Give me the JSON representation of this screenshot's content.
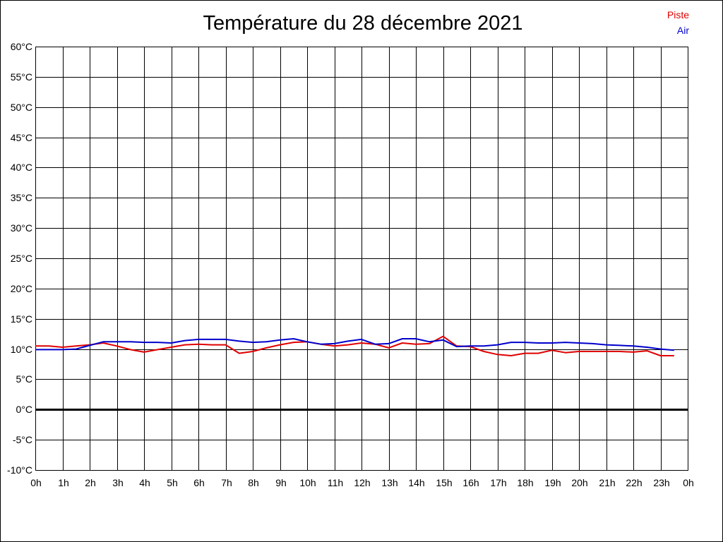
{
  "chart_data": {
    "type": "line",
    "title": "Température du 28 décembre 2021",
    "xlabel": "",
    "ylabel": "",
    "ylim": [
      -10,
      60
    ],
    "xlim": [
      0,
      24
    ],
    "yticks": [
      -10,
      -5,
      0,
      5,
      10,
      15,
      20,
      25,
      30,
      35,
      40,
      45,
      50,
      55,
      60
    ],
    "ytick_labels": [
      "-10°C",
      "-5°C",
      "0°C",
      "5°C",
      "10°C",
      "15°C",
      "20°C",
      "25°C",
      "30°C",
      "35°C",
      "40°C",
      "45°C",
      "50°C",
      "55°C",
      "60°C"
    ],
    "xticks": [
      0,
      1,
      2,
      3,
      4,
      5,
      6,
      7,
      8,
      9,
      10,
      11,
      12,
      13,
      14,
      15,
      16,
      17,
      18,
      19,
      20,
      21,
      22,
      23,
      24
    ],
    "xtick_labels": [
      "0h",
      "1h",
      "2h",
      "3h",
      "4h",
      "5h",
      "6h",
      "7h",
      "8h",
      "9h",
      "10h",
      "11h",
      "12h",
      "13h",
      "14h",
      "15h",
      "16h",
      "17h",
      "18h",
      "19h",
      "20h",
      "21h",
      "22h",
      "23h",
      "0h"
    ],
    "grid": true,
    "zero_line": true,
    "legend_position": "top-right",
    "series": [
      {
        "name": "Piste",
        "color": "#e00000",
        "x": [
          0,
          0.5,
          1,
          1.5,
          2,
          2.5,
          3,
          3.5,
          4,
          4.5,
          5,
          5.5,
          6,
          6.5,
          7,
          7.5,
          8,
          8.5,
          9,
          9.5,
          10,
          10.5,
          11,
          11.5,
          12,
          12.5,
          13,
          13.5,
          14,
          14.5,
          15,
          15.5,
          16,
          16.5,
          17,
          17.5,
          18,
          18.5,
          19,
          19.5,
          20,
          20.5,
          21,
          21.5,
          22,
          22.5,
          23,
          23.5
        ],
        "y": [
          10.5,
          10.5,
          10.3,
          10.5,
          10.7,
          11.0,
          10.5,
          9.9,
          9.5,
          9.9,
          10.3,
          10.7,
          10.8,
          10.7,
          10.7,
          9.3,
          9.6,
          10.2,
          10.7,
          11.1,
          11.2,
          10.8,
          10.5,
          10.7,
          11.0,
          10.8,
          10.2,
          11.0,
          10.8,
          10.9,
          12.1,
          10.5,
          10.4,
          9.6,
          9.1,
          8.9,
          9.3,
          9.3,
          9.8,
          9.4,
          9.6,
          9.6,
          9.6,
          9.6,
          9.5,
          9.7,
          8.9,
          8.9
        ]
      },
      {
        "name": "Air",
        "color": "#0000cc",
        "x": [
          0,
          0.5,
          1,
          1.5,
          2,
          2.5,
          3,
          3.5,
          4,
          4.5,
          5,
          5.5,
          6,
          6.5,
          7,
          7.5,
          8,
          8.5,
          9,
          9.5,
          10,
          10.5,
          11,
          11.5,
          12,
          12.5,
          13,
          13.5,
          14,
          14.5,
          15,
          15.5,
          16,
          16.5,
          17,
          17.5,
          18,
          18.5,
          19,
          19.5,
          20,
          20.5,
          21,
          21.5,
          22,
          22.5,
          23,
          23.5
        ],
        "y": [
          9.9,
          9.9,
          9.9,
          10.0,
          10.6,
          11.2,
          11.2,
          11.2,
          11.1,
          11.1,
          11.0,
          11.4,
          11.6,
          11.6,
          11.6,
          11.3,
          11.1,
          11.2,
          11.5,
          11.7,
          11.2,
          10.8,
          10.9,
          11.3,
          11.6,
          10.8,
          10.9,
          11.7,
          11.7,
          11.2,
          11.5,
          10.4,
          10.5,
          10.5,
          10.7,
          11.1,
          11.1,
          11.0,
          11.0,
          11.1,
          11.0,
          10.9,
          10.7,
          10.6,
          10.5,
          10.3,
          10.0,
          9.8
        ]
      }
    ]
  }
}
